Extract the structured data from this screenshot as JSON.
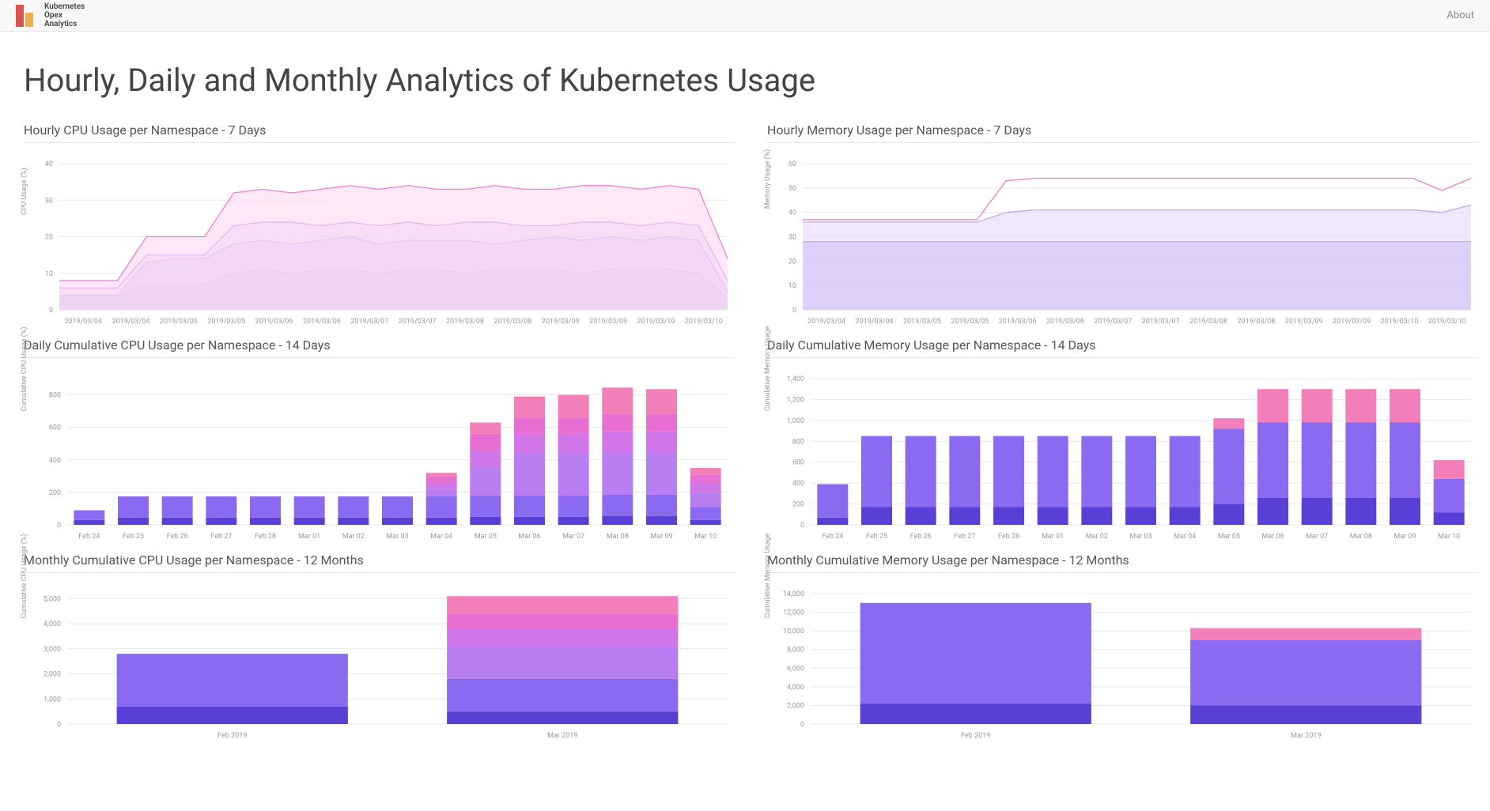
{
  "brand": {
    "line1": "Kubernetes",
    "line2": "Opex",
    "line3": "Analytics"
  },
  "nav": {
    "about": "About"
  },
  "page_title": "Hourly, Daily and Monthly Analytics of Kubernetes Usage",
  "palette": {
    "series": [
      "#5a3fd6",
      "#8a6af0",
      "#b87df0",
      "#d176e8",
      "#e86fd1",
      "#f27fb9"
    ],
    "grid": "#e8e8e8",
    "axis_text": "#999999"
  },
  "charts": {
    "hourly_cpu": {
      "title": "Hourly CPU Usage per Namespace - 7 Days",
      "type": "area",
      "ylabel": "CPU Usage (%)",
      "ylim": [
        0,
        40
      ],
      "ytick_step": 10,
      "x_labels": [
        "2019/03/04",
        "2019/03/04",
        "2019/03/05",
        "2019/03/05",
        "2019/03/06",
        "2019/03/06",
        "2019/03/07",
        "2019/03/07",
        "2019/03/08",
        "2019/03/08",
        "2019/03/09",
        "2019/03/09",
        "2019/03/10",
        "2019/03/10"
      ],
      "series": [
        {
          "color": "#9a7bf0",
          "fill": "#cbb8f8",
          "points": [
            4,
            4,
            4,
            7,
            7,
            7,
            10,
            11,
            10,
            11,
            11,
            10,
            11,
            11,
            10,
            11,
            11,
            11,
            10,
            11,
            11,
            11,
            10,
            3
          ]
        },
        {
          "color": "#b487f2",
          "fill": "#dcc9f9",
          "points": [
            4,
            4,
            4,
            13,
            14,
            14,
            18,
            19,
            18,
            19,
            20,
            18,
            19,
            19,
            19,
            18,
            19,
            20,
            19,
            20,
            19,
            20,
            19,
            5
          ]
        },
        {
          "color": "#d791f0",
          "fill": "#ecd6f9",
          "points": [
            6,
            6,
            6,
            15,
            15,
            15,
            23,
            24,
            24,
            23,
            24,
            23,
            24,
            23,
            24,
            24,
            23,
            23,
            24,
            24,
            23,
            24,
            23,
            8
          ]
        },
        {
          "color": "#f07fd1",
          "fill": "#f9d5ee",
          "points": [
            8,
            8,
            8,
            20,
            20,
            20,
            32,
            33,
            32,
            33,
            34,
            33,
            34,
            33,
            33,
            34,
            33,
            33,
            34,
            34,
            33,
            34,
            33,
            14
          ]
        }
      ]
    },
    "hourly_mem": {
      "title": "Hourly Memory Usage per Namespace - 7 Days",
      "type": "area",
      "ylabel": "Memory Usage (%)",
      "ylim": [
        0,
        60
      ],
      "ytick_step": 10,
      "x_labels": [
        "2019/03/04",
        "2019/03/04",
        "2019/03/05",
        "2019/03/05",
        "2019/03/06",
        "2019/03/06",
        "2019/03/07",
        "2019/03/07",
        "2019/03/08",
        "2019/03/08",
        "2019/03/09",
        "2019/03/09",
        "2019/03/10",
        "2019/03/10"
      ],
      "series": [
        {
          "color": "#9a7bf0",
          "fill": "#b89df5",
          "points": [
            28,
            28,
            28,
            28,
            28,
            28,
            28,
            28,
            28,
            28,
            28,
            28,
            28,
            28,
            28,
            28,
            28,
            28,
            28,
            28,
            28,
            28,
            28,
            28
          ]
        },
        {
          "color": "#c3a9f5",
          "fill": "#e3d6fa",
          "points": [
            36,
            36,
            36,
            36,
            36,
            36,
            36,
            40,
            41,
            41,
            41,
            41,
            41,
            41,
            41,
            41,
            41,
            41,
            41,
            41,
            41,
            41,
            40,
            43
          ]
        },
        {
          "color": "#f07fb9",
          "fill": "none",
          "points": [
            37,
            37,
            37,
            37,
            37,
            37,
            37,
            53,
            54,
            54,
            54,
            54,
            54,
            54,
            54,
            54,
            54,
            54,
            54,
            54,
            54,
            54,
            49,
            54
          ]
        }
      ]
    },
    "daily_cpu": {
      "title": "Daily Cumulative CPU Usage per Namespace - 14 Days",
      "type": "stacked_bar",
      "ylabel": "Cumulative CPU Usage (%)",
      "ylim": [
        0,
        900
      ],
      "ytick_step": 200,
      "categories": [
        "Feb 24",
        "Feb 25",
        "Feb 26",
        "Feb 27",
        "Feb 28",
        "Mar 01",
        "Mar 02",
        "Mar 03",
        "Mar 04",
        "Mar 05",
        "Mar 06",
        "Mar 07",
        "Mar 08",
        "Mar 09",
        "Mar 10"
      ],
      "stacks": [
        {
          "color": "#5a3fd6",
          "values": [
            30,
            45,
            45,
            45,
            45,
            45,
            45,
            45,
            45,
            50,
            50,
            50,
            55,
            55,
            30
          ]
        },
        {
          "color": "#8a6af0",
          "values": [
            60,
            130,
            130,
            130,
            130,
            130,
            130,
            130,
            130,
            130,
            130,
            130,
            130,
            130,
            80
          ]
        },
        {
          "color": "#b87df0",
          "values": [
            0,
            0,
            0,
            0,
            0,
            0,
            0,
            0,
            45,
            170,
            260,
            260,
            260,
            260,
            90
          ]
        },
        {
          "color": "#d176e8",
          "values": [
            0,
            0,
            0,
            0,
            0,
            0,
            0,
            0,
            40,
            110,
            120,
            120,
            130,
            130,
            60
          ]
        },
        {
          "color": "#e86fd1",
          "values": [
            0,
            0,
            0,
            0,
            0,
            0,
            0,
            0,
            40,
            100,
            100,
            100,
            110,
            110,
            50
          ]
        },
        {
          "color": "#f27fb9",
          "values": [
            0,
            0,
            0,
            0,
            0,
            0,
            0,
            0,
            20,
            70,
            130,
            140,
            160,
            150,
            40
          ]
        }
      ]
    },
    "daily_mem": {
      "title": "Daily Cumulative Memory Usage per Namespace - 14 Days",
      "type": "stacked_bar",
      "ylabel": "Cumulative Memory Usage",
      "ylim": [
        0,
        1400
      ],
      "ytick_step": 200,
      "categories": [
        "Feb 24",
        "Feb 25",
        "Feb 26",
        "Feb 27",
        "Feb 28",
        "Mar 01",
        "Mar 02",
        "Mar 03",
        "Mar 04",
        "Mar 05",
        "Mar 06",
        "Mar 07",
        "Mar 08",
        "Mar 09",
        "Mar 10"
      ],
      "stacks": [
        {
          "color": "#5a3fd6",
          "values": [
            70,
            170,
            170,
            170,
            170,
            170,
            170,
            170,
            170,
            200,
            260,
            260,
            260,
            260,
            120
          ]
        },
        {
          "color": "#8a6af0",
          "values": [
            320,
            680,
            680,
            680,
            680,
            680,
            680,
            680,
            680,
            720,
            720,
            720,
            720,
            720,
            320
          ]
        },
        {
          "color": "#f27fb9",
          "values": [
            0,
            0,
            0,
            0,
            0,
            0,
            0,
            0,
            0,
            100,
            320,
            320,
            320,
            320,
            180
          ]
        }
      ]
    },
    "monthly_cpu": {
      "title": "Monthly Cumulative CPU Usage per Namespace - 12 Months",
      "type": "stacked_bar",
      "ylabel": "Cumulative CPU Usage (%)",
      "ylim": [
        0,
        5200
      ],
      "ytick_step": 1000,
      "categories": [
        "Feb 2019",
        "Mar 2019"
      ],
      "stacks": [
        {
          "color": "#5a3fd6",
          "values": [
            700,
            500
          ]
        },
        {
          "color": "#8a6af0",
          "values": [
            2100,
            1300
          ]
        },
        {
          "color": "#b87df0",
          "values": [
            0,
            1300
          ]
        },
        {
          "color": "#d176e8",
          "values": [
            0,
            700
          ]
        },
        {
          "color": "#e86fd1",
          "values": [
            0,
            600
          ]
        },
        {
          "color": "#f27fb9",
          "values": [
            0,
            700
          ]
        }
      ]
    },
    "monthly_mem": {
      "title": "Monthly Cumulative Memory Usage per Namespace - 12 Months",
      "type": "stacked_bar",
      "ylabel": "Cumulative Memory Usage",
      "ylim": [
        0,
        14000
      ],
      "ytick_step": 2000,
      "categories": [
        "Feb 2019",
        "Mar 2019"
      ],
      "stacks": [
        {
          "color": "#5a3fd6",
          "values": [
            2200,
            2000
          ]
        },
        {
          "color": "#8a6af0",
          "values": [
            10800,
            7000
          ]
        },
        {
          "color": "#f27fb9",
          "values": [
            0,
            1300
          ]
        }
      ]
    }
  }
}
